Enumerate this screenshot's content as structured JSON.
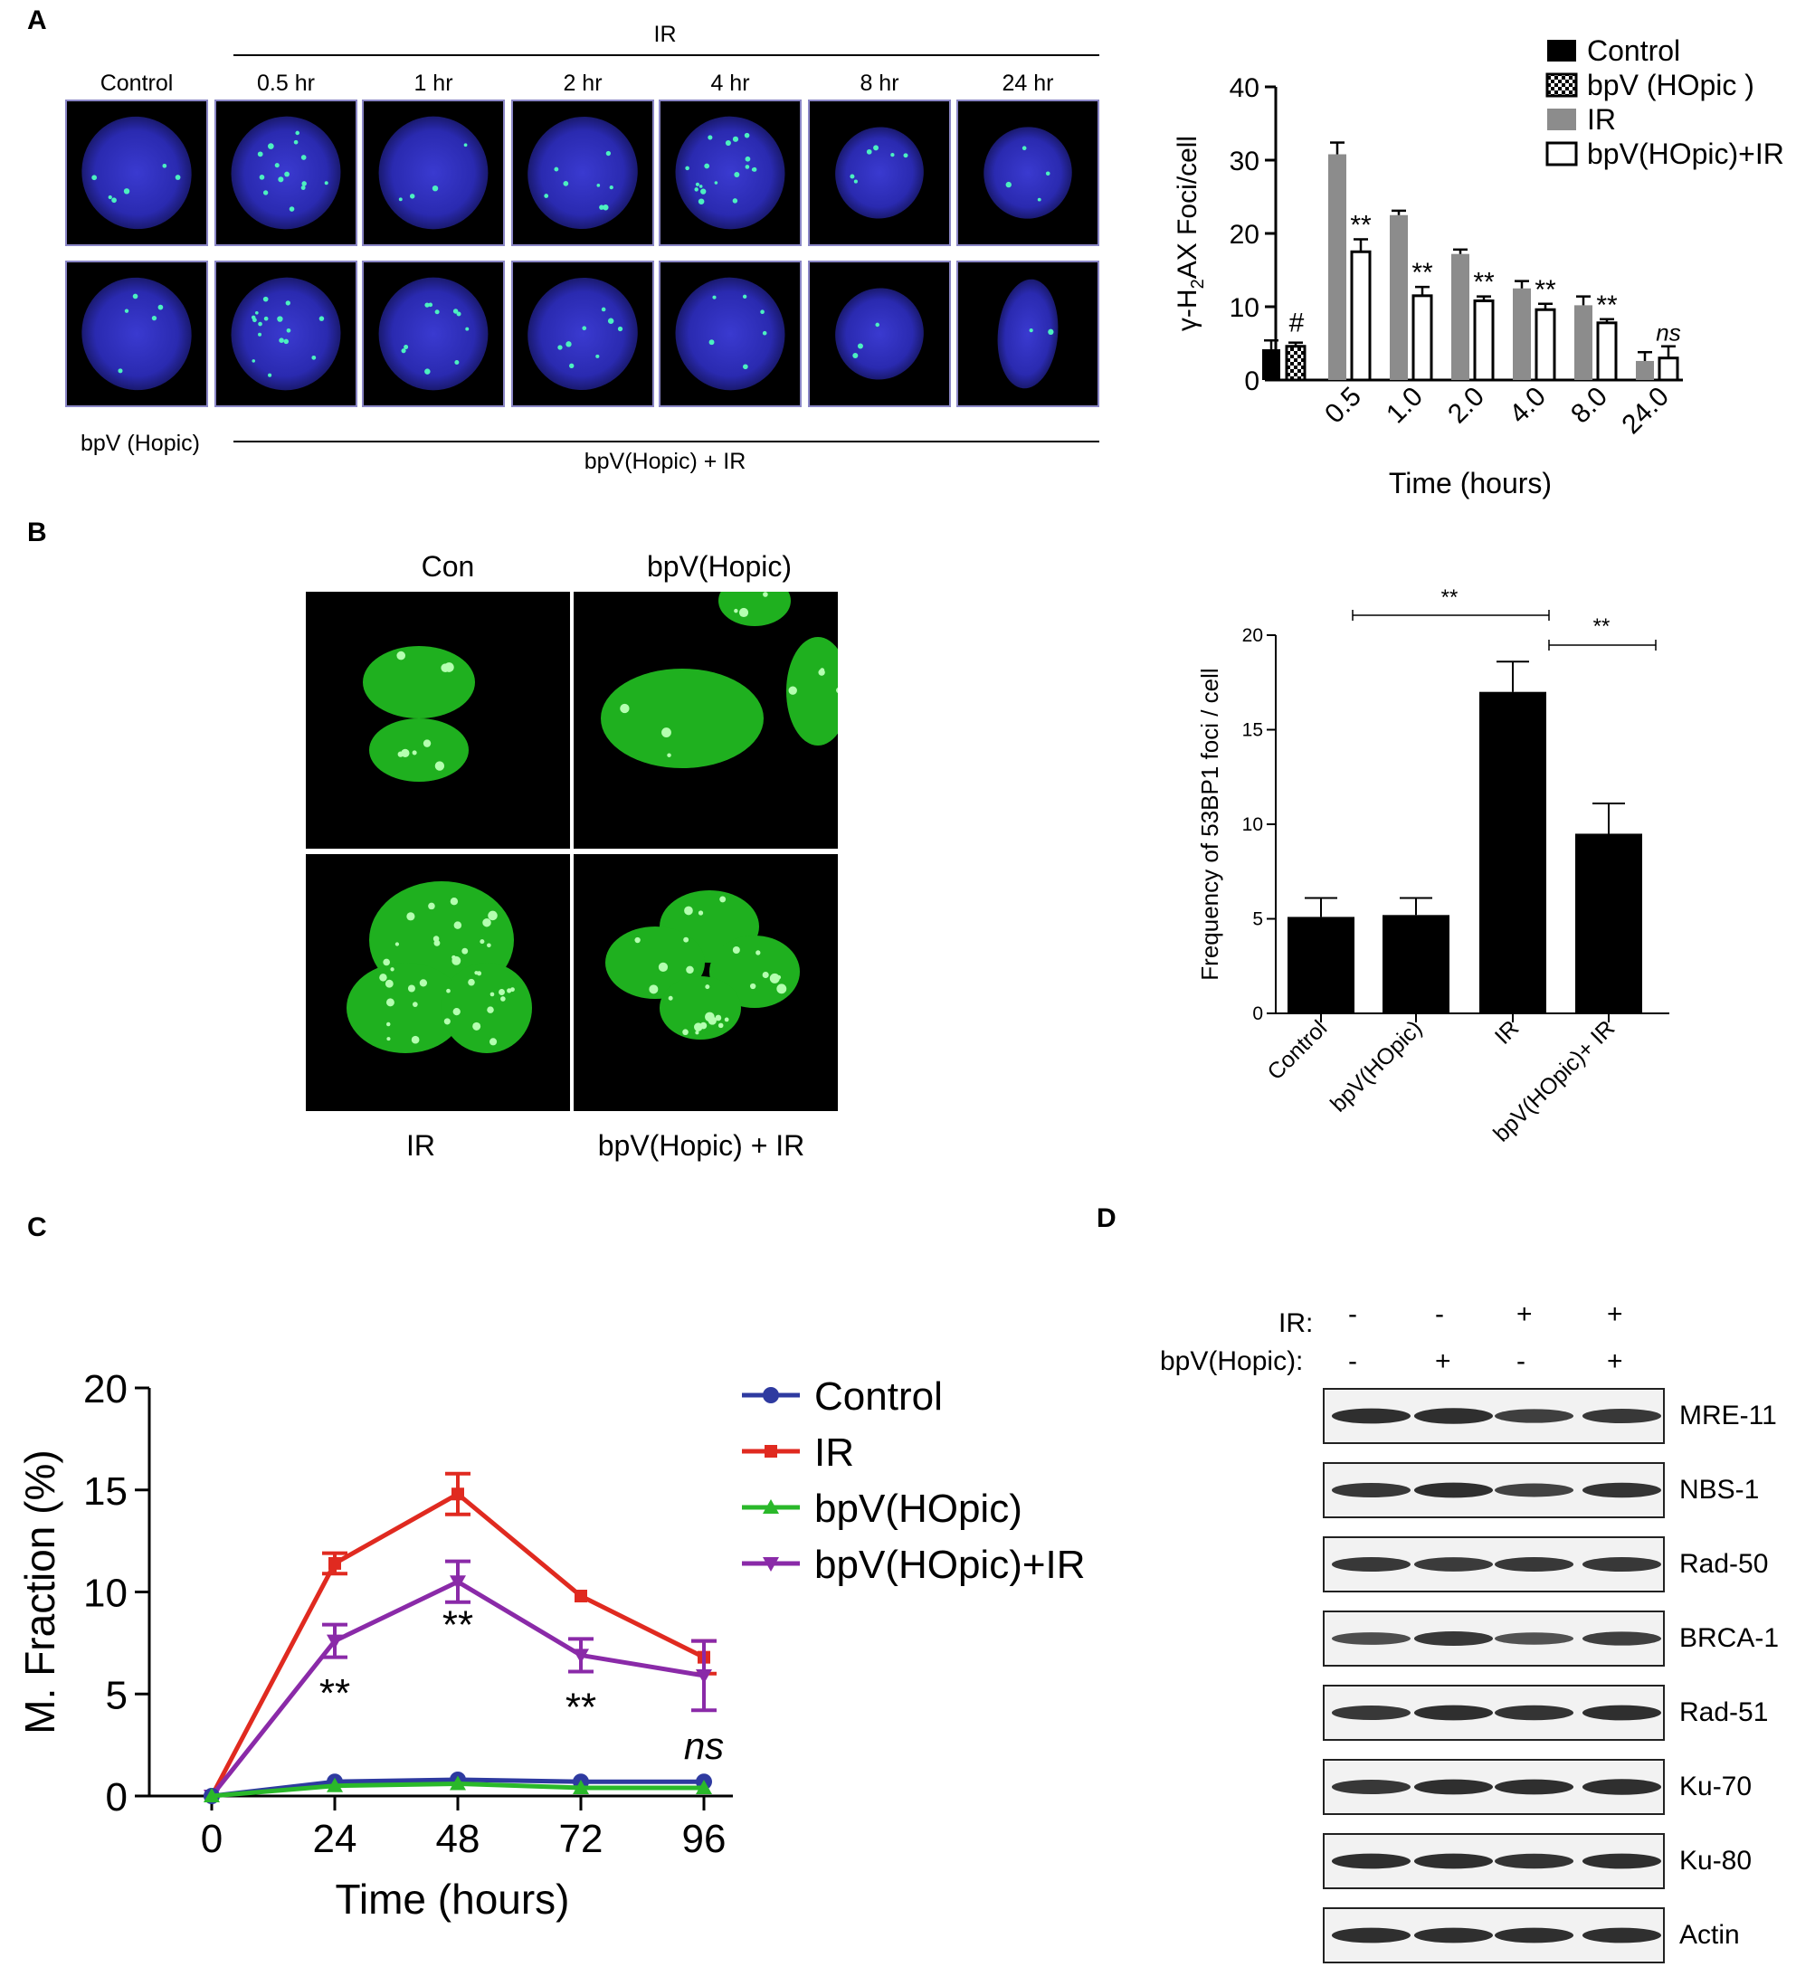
{
  "panels": {
    "A": "A",
    "B": "B",
    "C": "C",
    "D": "D"
  },
  "panelA": {
    "ir_header": "IR",
    "col_labels": [
      "Control",
      "0.5 hr",
      "1 hr",
      "2 hr",
      "4 hr",
      "8 hr",
      "24 hr"
    ],
    "row2_left": "bpV (Hopic)",
    "row2_header": "bpV(Hopic) + IR"
  },
  "chart_a": {
    "type": "bar",
    "ylabel_pre": "γ-H",
    "ylabel_sub": "2",
    "ylabel_post": "AX Foci/cell",
    "xlabel": "Time (hours)",
    "ylim": [
      0,
      40
    ],
    "yticks": [
      0,
      10,
      20,
      30,
      40
    ],
    "categories": [
      "0.5",
      "1.0",
      "2.0",
      "4.0",
      "8.0",
      "24.0"
    ],
    "legend": [
      "Control",
      "bpV (HOpic )",
      "IR",
      "bpV(HOpic)+IR"
    ],
    "control": {
      "value": 4.2,
      "err": 1.2
    },
    "bpv": {
      "value": 4.6,
      "err": 0.5
    },
    "ir": [
      {
        "value": 30.8,
        "err": 1.6
      },
      {
        "value": 22.5,
        "err": 0.6
      },
      {
        "value": 17.2,
        "err": 0.6
      },
      {
        "value": 12.5,
        "err": 1.0
      },
      {
        "value": 10.2,
        "err": 1.2
      },
      {
        "value": 2.6,
        "err": 1.2
      }
    ],
    "bpv_ir": [
      {
        "value": 17.5,
        "err": 1.7
      },
      {
        "value": 11.5,
        "err": 1.2
      },
      {
        "value": 10.8,
        "err": 0.6
      },
      {
        "value": 9.6,
        "err": 0.8
      },
      {
        "value": 7.8,
        "err": 0.5
      },
      {
        "value": 3.0,
        "err": 1.6
      }
    ],
    "hash_mark": "#",
    "sig_marks": [
      "**",
      "**",
      "**",
      "**",
      "**",
      "ns"
    ]
  },
  "panelB": {
    "top_labels": [
      "Con",
      "bpV(Hopic)"
    ],
    "bottom_labels": [
      "IR",
      "bpV(Hopic) + IR"
    ]
  },
  "chart_b": {
    "type": "bar",
    "ylabel": "Frequency of 53BP1 foci / cell",
    "ylim": [
      0,
      20
    ],
    "yticks": [
      0,
      5,
      10,
      15,
      20
    ],
    "categories": [
      "Control",
      "bpV(HOpic)",
      "IR",
      "bpV(HOpic)+ IR"
    ],
    "values": [
      5.1,
      5.2,
      17.0,
      9.5
    ],
    "errors": [
      1.0,
      0.9,
      1.6,
      1.6
    ],
    "sig_marks": [
      "**",
      "**"
    ]
  },
  "chart_c": {
    "type": "line",
    "ylabel": "M. Fraction (%)",
    "xlabel": "Time (hours)",
    "ylim": [
      0,
      20
    ],
    "yticks": [
      0,
      5,
      10,
      15,
      20
    ],
    "x": [
      0,
      24,
      48,
      72,
      96
    ],
    "series": [
      {
        "name": "Control",
        "color": "#2e3aa0",
        "marker": "circle",
        "values": [
          0,
          0.7,
          0.8,
          0.7,
          0.7
        ],
        "errors": [
          0,
          0.1,
          0.1,
          0.1,
          0.1
        ]
      },
      {
        "name": "IR",
        "color": "#e02a20",
        "marker": "square",
        "values": [
          0,
          11.4,
          14.8,
          9.8,
          6.8
        ],
        "errors": [
          0,
          0.5,
          1.0,
          0.15,
          0.8
        ]
      },
      {
        "name": "bpV(HOpic)",
        "color": "#2ab82a",
        "marker": "triangle-up",
        "values": [
          0,
          0.5,
          0.6,
          0.4,
          0.4
        ],
        "errors": [
          0,
          0.1,
          0.1,
          0.1,
          0.1
        ]
      },
      {
        "name": "bpV(HOpic)+IR",
        "color": "#8a2aa8",
        "marker": "triangle-down",
        "values": [
          0,
          7.6,
          10.5,
          6.9,
          5.9
        ],
        "errors": [
          0,
          0.8,
          1.0,
          0.8,
          1.7
        ]
      }
    ],
    "sig_marks": [
      "**",
      "**",
      "**",
      "ns"
    ]
  },
  "panelD": {
    "ir_label": "IR:",
    "bpv_label": "bpV(Hopic):",
    "ir_signs": [
      "-",
      "-",
      "+",
      "+"
    ],
    "bpv_signs": [
      "-",
      "+",
      "-",
      "+"
    ],
    "proteins": [
      "MRE-11",
      "NBS-1",
      "Rad-50",
      "BRCA-1",
      "Rad-51",
      "Ku-70",
      "Ku-80",
      "Actin"
    ]
  }
}
